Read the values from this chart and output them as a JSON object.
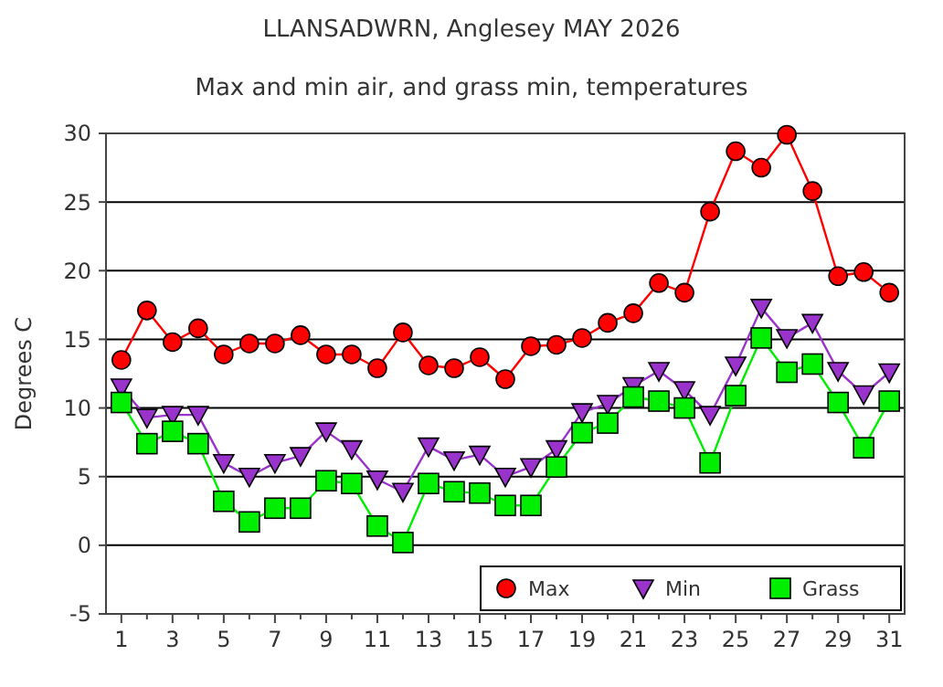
{
  "chart_data": {
    "type": "line",
    "title": "LLANSADWRN, Anglesey MAY 2026",
    "subtitle": "Max and min air, and grass min, temperatures",
    "ylabel": "Degrees C",
    "x": [
      1,
      2,
      3,
      4,
      5,
      6,
      7,
      8,
      9,
      10,
      11,
      12,
      13,
      14,
      15,
      16,
      17,
      18,
      19,
      20,
      21,
      22,
      23,
      24,
      25,
      26,
      27,
      28,
      29,
      30,
      31
    ],
    "xlim": [
      0.4,
      31.6
    ],
    "xticks": [
      1,
      {
        "value": 2,
        "label": null
      },
      3,
      {
        "value": 4,
        "label": null
      },
      5,
      {
        "value": 6,
        "label": null
      },
      7,
      {
        "value": 8,
        "label": null
      },
      9,
      {
        "value": 10,
        "label": null
      },
      11,
      {
        "value": 12,
        "label": null
      },
      13,
      {
        "value": 14,
        "label": null
      },
      15,
      {
        "value": 16,
        "label": null
      },
      17,
      {
        "value": 18,
        "label": null
      },
      19,
      {
        "value": 20,
        "label": null
      },
      21,
      {
        "value": 22,
        "label": null
      },
      23,
      {
        "value": 24,
        "label": null
      },
      25,
      {
        "value": 26,
        "label": null
      },
      27,
      {
        "value": 28,
        "label": null
      },
      29,
      {
        "value": 30,
        "label": null
      },
      31
    ],
    "ylim": [
      -5,
      30
    ],
    "yticks": [
      -5,
      0,
      5,
      10,
      15,
      20,
      25,
      30
    ],
    "grid": "y",
    "legend": "bottom right",
    "series": [
      {
        "name": "Max",
        "color": "#ff0000",
        "marker": "circle",
        "values": [
          13.5,
          17.1,
          14.8,
          15.8,
          13.9,
          14.7,
          14.7,
          15.3,
          13.9,
          13.9,
          12.9,
          15.5,
          13.1,
          12.9,
          13.7,
          12.1,
          14.5,
          14.6,
          15.1,
          16.2,
          16.9,
          19.1,
          18.4,
          24.3,
          28.7,
          27.5,
          29.9,
          25.8,
          19.6,
          19.9,
          18.4
        ]
      },
      {
        "name": "Min",
        "color": "#9933cc",
        "marker": "triangle",
        "values": [
          11.5,
          9.3,
          9.5,
          9.5,
          6.0,
          5.0,
          6.0,
          6.5,
          8.3,
          7.0,
          4.8,
          3.9,
          7.2,
          6.2,
          6.6,
          5.0,
          5.7,
          7.0,
          9.7,
          10.3,
          11.6,
          12.7,
          11.3,
          9.5,
          13.1,
          17.3,
          15.1,
          16.2,
          12.7,
          11.0,
          12.6
        ]
      },
      {
        "name": "Grass",
        "color": "#00ee00",
        "marker": "square",
        "values": [
          10.4,
          7.4,
          8.3,
          7.4,
          3.2,
          1.7,
          2.7,
          2.7,
          4.7,
          4.5,
          1.4,
          0.2,
          4.5,
          3.9,
          3.8,
          2.9,
          2.9,
          5.7,
          8.2,
          8.9,
          10.8,
          10.5,
          10.0,
          6.0,
          10.9,
          15.1,
          12.6,
          13.2,
          10.4,
          7.1,
          10.5
        ]
      }
    ]
  }
}
